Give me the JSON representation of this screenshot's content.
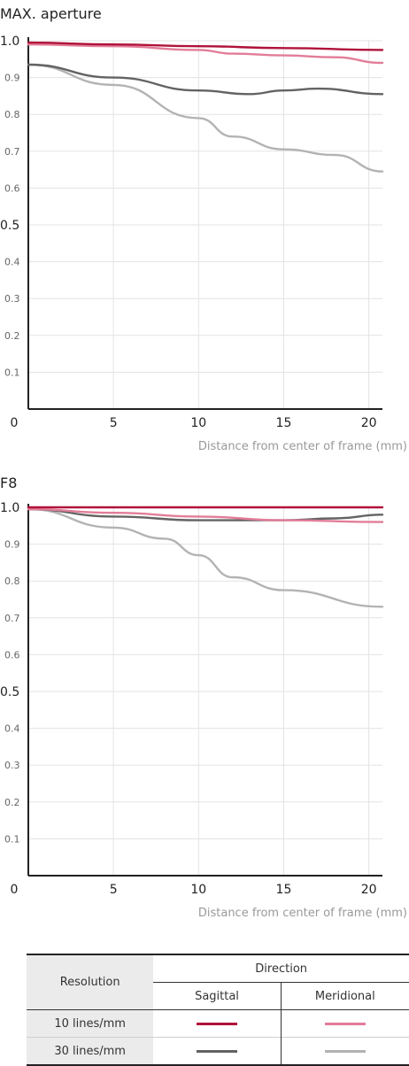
{
  "chart_data": [
    {
      "type": "line",
      "title": "MAX. aperture",
      "xlabel": "Distance from center of frame (mm)",
      "ylabel": "",
      "xlim": [
        0,
        20.8
      ],
      "ylim": [
        0,
        1.0
      ],
      "x_ticks": [
        "0",
        "5",
        "10",
        "15",
        "20"
      ],
      "y_ticks": [
        "0.1",
        "0.2",
        "0.3",
        "0.4",
        "0.5",
        "0.6",
        "0.7",
        "0.8",
        "0.9",
        "1.0"
      ],
      "grid": true,
      "series": [
        {
          "color": "#b0123a",
          "x": [
            0,
            5,
            10,
            15,
            20.8
          ],
          "values": [
            0.995,
            0.99,
            0.985,
            0.98,
            0.975
          ]
        },
        {
          "color": "#e27d99",
          "x": [
            0,
            5,
            10,
            12,
            15,
            18,
            20.8
          ],
          "values": [
            0.99,
            0.985,
            0.975,
            0.965,
            0.96,
            0.955,
            0.94
          ]
        },
        {
          "color": "#636363",
          "x": [
            0,
            5,
            10,
            13,
            15,
            17,
            20.8
          ],
          "values": [
            0.935,
            0.9,
            0.865,
            0.855,
            0.865,
            0.87,
            0.855
          ]
        },
        {
          "color": "#b3b3b3",
          "x": [
            0,
            5,
            10,
            12,
            15,
            18,
            20.8
          ],
          "values": [
            0.935,
            0.88,
            0.79,
            0.74,
            0.705,
            0.69,
            0.645
          ]
        }
      ]
    },
    {
      "type": "line",
      "title": "F8",
      "xlabel": "Distance from center of frame (mm)",
      "ylabel": "",
      "xlim": [
        0,
        20.8
      ],
      "ylim": [
        0,
        1.0
      ],
      "x_ticks": [
        "0",
        "5",
        "10",
        "15",
        "20"
      ],
      "y_ticks": [
        "0.1",
        "0.2",
        "0.3",
        "0.4",
        "0.5",
        "0.6",
        "0.7",
        "0.8",
        "0.9",
        "1.0"
      ],
      "grid": true,
      "series": [
        {
          "color": "#b0123a",
          "x": [
            0,
            5,
            10,
            15,
            20.8
          ],
          "values": [
            1.0,
            1.0,
            1.0,
            1.0,
            1.0
          ]
        },
        {
          "color": "#e27d99",
          "x": [
            0,
            5,
            10,
            15,
            20.8
          ],
          "values": [
            0.995,
            0.985,
            0.975,
            0.965,
            0.96
          ]
        },
        {
          "color": "#636363",
          "x": [
            0,
            5,
            10,
            15,
            18,
            20.8
          ],
          "values": [
            0.995,
            0.975,
            0.965,
            0.965,
            0.97,
            0.98
          ]
        },
        {
          "color": "#b3b3b3",
          "x": [
            0,
            5,
            8,
            10,
            12,
            15,
            20.8
          ],
          "values": [
            0.995,
            0.945,
            0.915,
            0.87,
            0.81,
            0.775,
            0.73
          ]
        }
      ]
    }
  ],
  "legend": {
    "resolution_label": "Resolution",
    "direction_label": "Direction",
    "sagittal_label": "Sagittal",
    "meridional_label": "Meridional",
    "rows": [
      {
        "label": "10 lines/mm",
        "sagittal_color": "#b0123a",
        "meridional_color": "#e27d99"
      },
      {
        "label": "30 lines/mm",
        "sagittal_color": "#636363",
        "meridional_color": "#b3b3b3"
      }
    ]
  }
}
